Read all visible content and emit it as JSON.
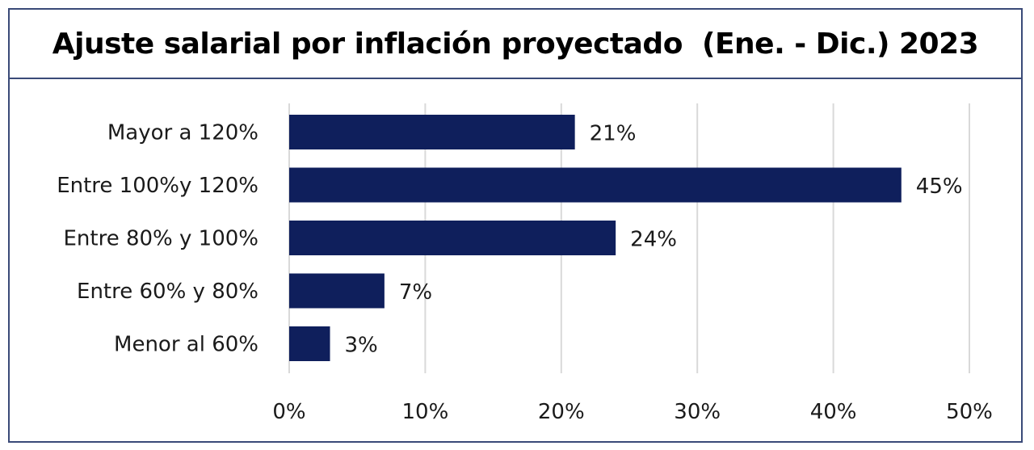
{
  "chart_data": {
    "type": "bar",
    "orientation": "horizontal",
    "title": "Ajuste salarial por inflación proyectado  (Ene. - Dic.) 2023",
    "categories": [
      "Mayor a 120%",
      "Entre 100%y 120%",
      "Entre 80% y 100%",
      "Entre 60% y 80%",
      "Menor al 60%"
    ],
    "values": [
      21,
      45,
      24,
      7,
      3
    ],
    "data_labels": [
      "21%",
      "45%",
      "24%",
      "7%",
      "3%"
    ],
    "xlim": [
      0,
      50
    ],
    "x_ticks": [
      0,
      10,
      20,
      30,
      40,
      50
    ],
    "x_tick_labels": [
      "0%",
      "10%",
      "20%",
      "30%",
      "40%",
      "50%"
    ],
    "grid": true,
    "legend": "none",
    "bar_color": "#0f1f5c",
    "grid_color": "#d9d9d9",
    "border_color": "#3a4a78"
  }
}
